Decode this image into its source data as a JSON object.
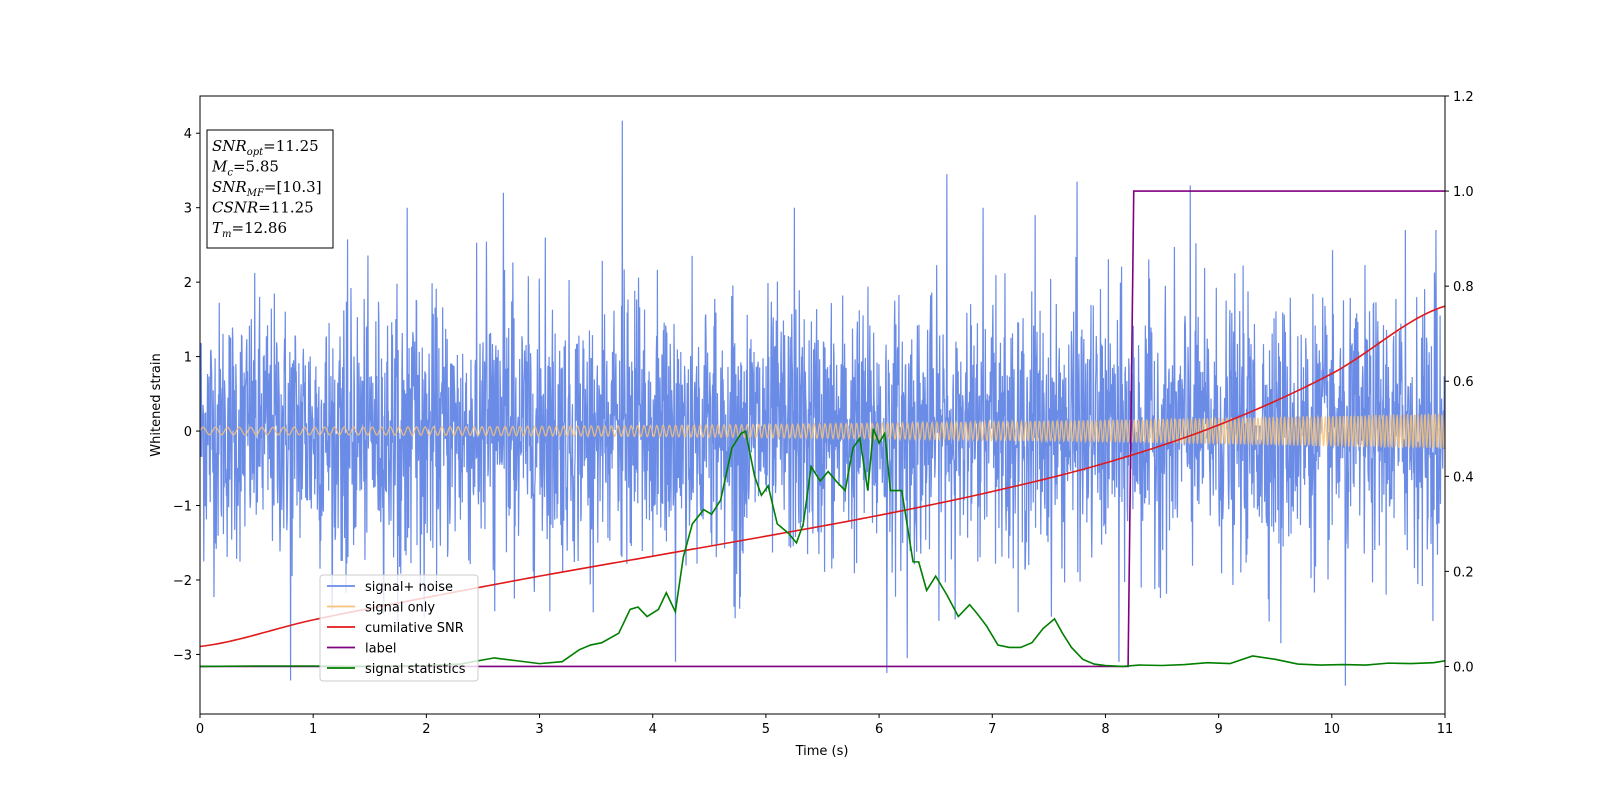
{
  "chart_data": {
    "type": "line",
    "title": "",
    "xlabel": "Time (s)",
    "ylabel": "Whitened strain",
    "xlim": [
      0,
      11
    ],
    "ylim_left": [
      -3.8,
      4.5
    ],
    "ylim_right": [
      -0.1,
      1.2
    ],
    "x_ticks": [
      "0",
      "1",
      "2",
      "3",
      "4",
      "5",
      "6",
      "7",
      "8",
      "9",
      "10",
      "11"
    ],
    "y_ticks_left": [
      "−3",
      "−2",
      "−1",
      "0",
      "1",
      "2",
      "3",
      "4"
    ],
    "y_ticks_right": [
      "0.0",
      "0.2",
      "0.4",
      "0.6",
      "0.8",
      "1.0",
      "1.2"
    ],
    "grid": false,
    "legend_position": "lower-left",
    "annotation": [
      {
        "main": "SNR",
        "sub": "opt",
        "value": "=11.25"
      },
      {
        "main": "M",
        "sub": "c",
        "value": "=5.85"
      },
      {
        "main": "SNR",
        "sub": "MF",
        "value": "=[10.3]"
      },
      {
        "main": "CSNR",
        "sub": "",
        "value": "=11.25"
      },
      {
        "main": "T",
        "sub": "m",
        "value": "=12.86"
      }
    ],
    "series": [
      {
        "name": "signal+ noise",
        "axis": "left",
        "color": "#6a8be6",
        "noise_std": 0.85,
        "peaks": [
          [
            0.8,
            -3.35
          ],
          [
            1.83,
            3.0
          ],
          [
            2.68,
            3.2
          ],
          [
            3.05,
            2.6
          ],
          [
            3.73,
            4.17
          ],
          [
            4.2,
            -3.1
          ],
          [
            5.25,
            3.0
          ],
          [
            6.25,
            -3.05
          ],
          [
            6.07,
            -3.25
          ],
          [
            6.6,
            3.45
          ],
          [
            6.92,
            3.0
          ],
          [
            7.38,
            2.9
          ],
          [
            7.75,
            3.35
          ],
          [
            8.12,
            -3.1
          ],
          [
            8.75,
            3.3
          ],
          [
            9.55,
            -2.85
          ],
          [
            10.12,
            -3.42
          ],
          [
            10.65,
            2.7
          ],
          [
            10.92,
            2.7
          ]
        ]
      },
      {
        "name": "signal only",
        "axis": "left",
        "color": "#f5c27a",
        "amplitude_start": 0.05,
        "amplitude_end": 0.24
      },
      {
        "name": "cumilative SNR",
        "axis": "right",
        "color": "#e0191b",
        "x": [
          0,
          1,
          2,
          3,
          4,
          5,
          6,
          7,
          8,
          9,
          10,
          11
        ],
        "values": [
          0.042,
          0.098,
          0.145,
          0.19,
          0.232,
          0.274,
          0.318,
          0.368,
          0.428,
          0.508,
          0.616,
          0.758
        ]
      },
      {
        "name": "label",
        "axis": "right",
        "color": "#800080",
        "x": [
          0,
          8.2,
          8.25,
          11
        ],
        "values": [
          0.0,
          0.0,
          1.0,
          1.0
        ]
      },
      {
        "name": "signal statistics",
        "axis": "right",
        "color": "#007f00",
        "x": [
          0,
          0.5,
          1,
          1.5,
          2,
          2.3,
          2.6,
          2.8,
          3.0,
          3.2,
          3.35,
          3.45,
          3.55,
          3.7,
          3.8,
          3.87,
          3.95,
          4.05,
          4.12,
          4.2,
          4.27,
          4.35,
          4.45,
          4.52,
          4.6,
          4.7,
          4.78,
          4.82,
          4.9,
          4.96,
          5.02,
          5.1,
          5.2,
          5.27,
          5.33,
          5.4,
          5.48,
          5.55,
          5.62,
          5.7,
          5.77,
          5.83,
          5.9,
          5.95,
          6.0,
          6.05,
          6.1,
          6.2,
          6.3,
          6.35,
          6.42,
          6.5,
          6.6,
          6.7,
          6.8,
          6.87,
          6.95,
          7.05,
          7.15,
          7.25,
          7.35,
          7.45,
          7.55,
          7.62,
          7.7,
          7.8,
          7.9,
          8.0,
          8.15,
          8.3,
          8.5,
          8.7,
          8.9,
          9.1,
          9.3,
          9.5,
          9.7,
          9.9,
          10.1,
          10.3,
          10.5,
          10.7,
          10.9,
          11
        ],
        "values": [
          0.0,
          0.001,
          0.001,
          0.0,
          0.002,
          0.005,
          0.018,
          0.012,
          0.006,
          0.01,
          0.035,
          0.045,
          0.05,
          0.07,
          0.12,
          0.125,
          0.105,
          0.12,
          0.155,
          0.115,
          0.23,
          0.3,
          0.33,
          0.32,
          0.35,
          0.46,
          0.49,
          0.495,
          0.4,
          0.36,
          0.38,
          0.3,
          0.28,
          0.26,
          0.3,
          0.42,
          0.39,
          0.41,
          0.39,
          0.37,
          0.46,
          0.48,
          0.37,
          0.5,
          0.47,
          0.49,
          0.37,
          0.37,
          0.22,
          0.22,
          0.16,
          0.19,
          0.15,
          0.105,
          0.13,
          0.11,
          0.085,
          0.045,
          0.04,
          0.04,
          0.05,
          0.08,
          0.1,
          0.07,
          0.04,
          0.015,
          0.005,
          0.002,
          0.0,
          0.003,
          0.002,
          0.004,
          0.008,
          0.006,
          0.022,
          0.015,
          0.005,
          0.003,
          0.004,
          0.003,
          0.007,
          0.006,
          0.008,
          0.012
        ]
      }
    ]
  }
}
